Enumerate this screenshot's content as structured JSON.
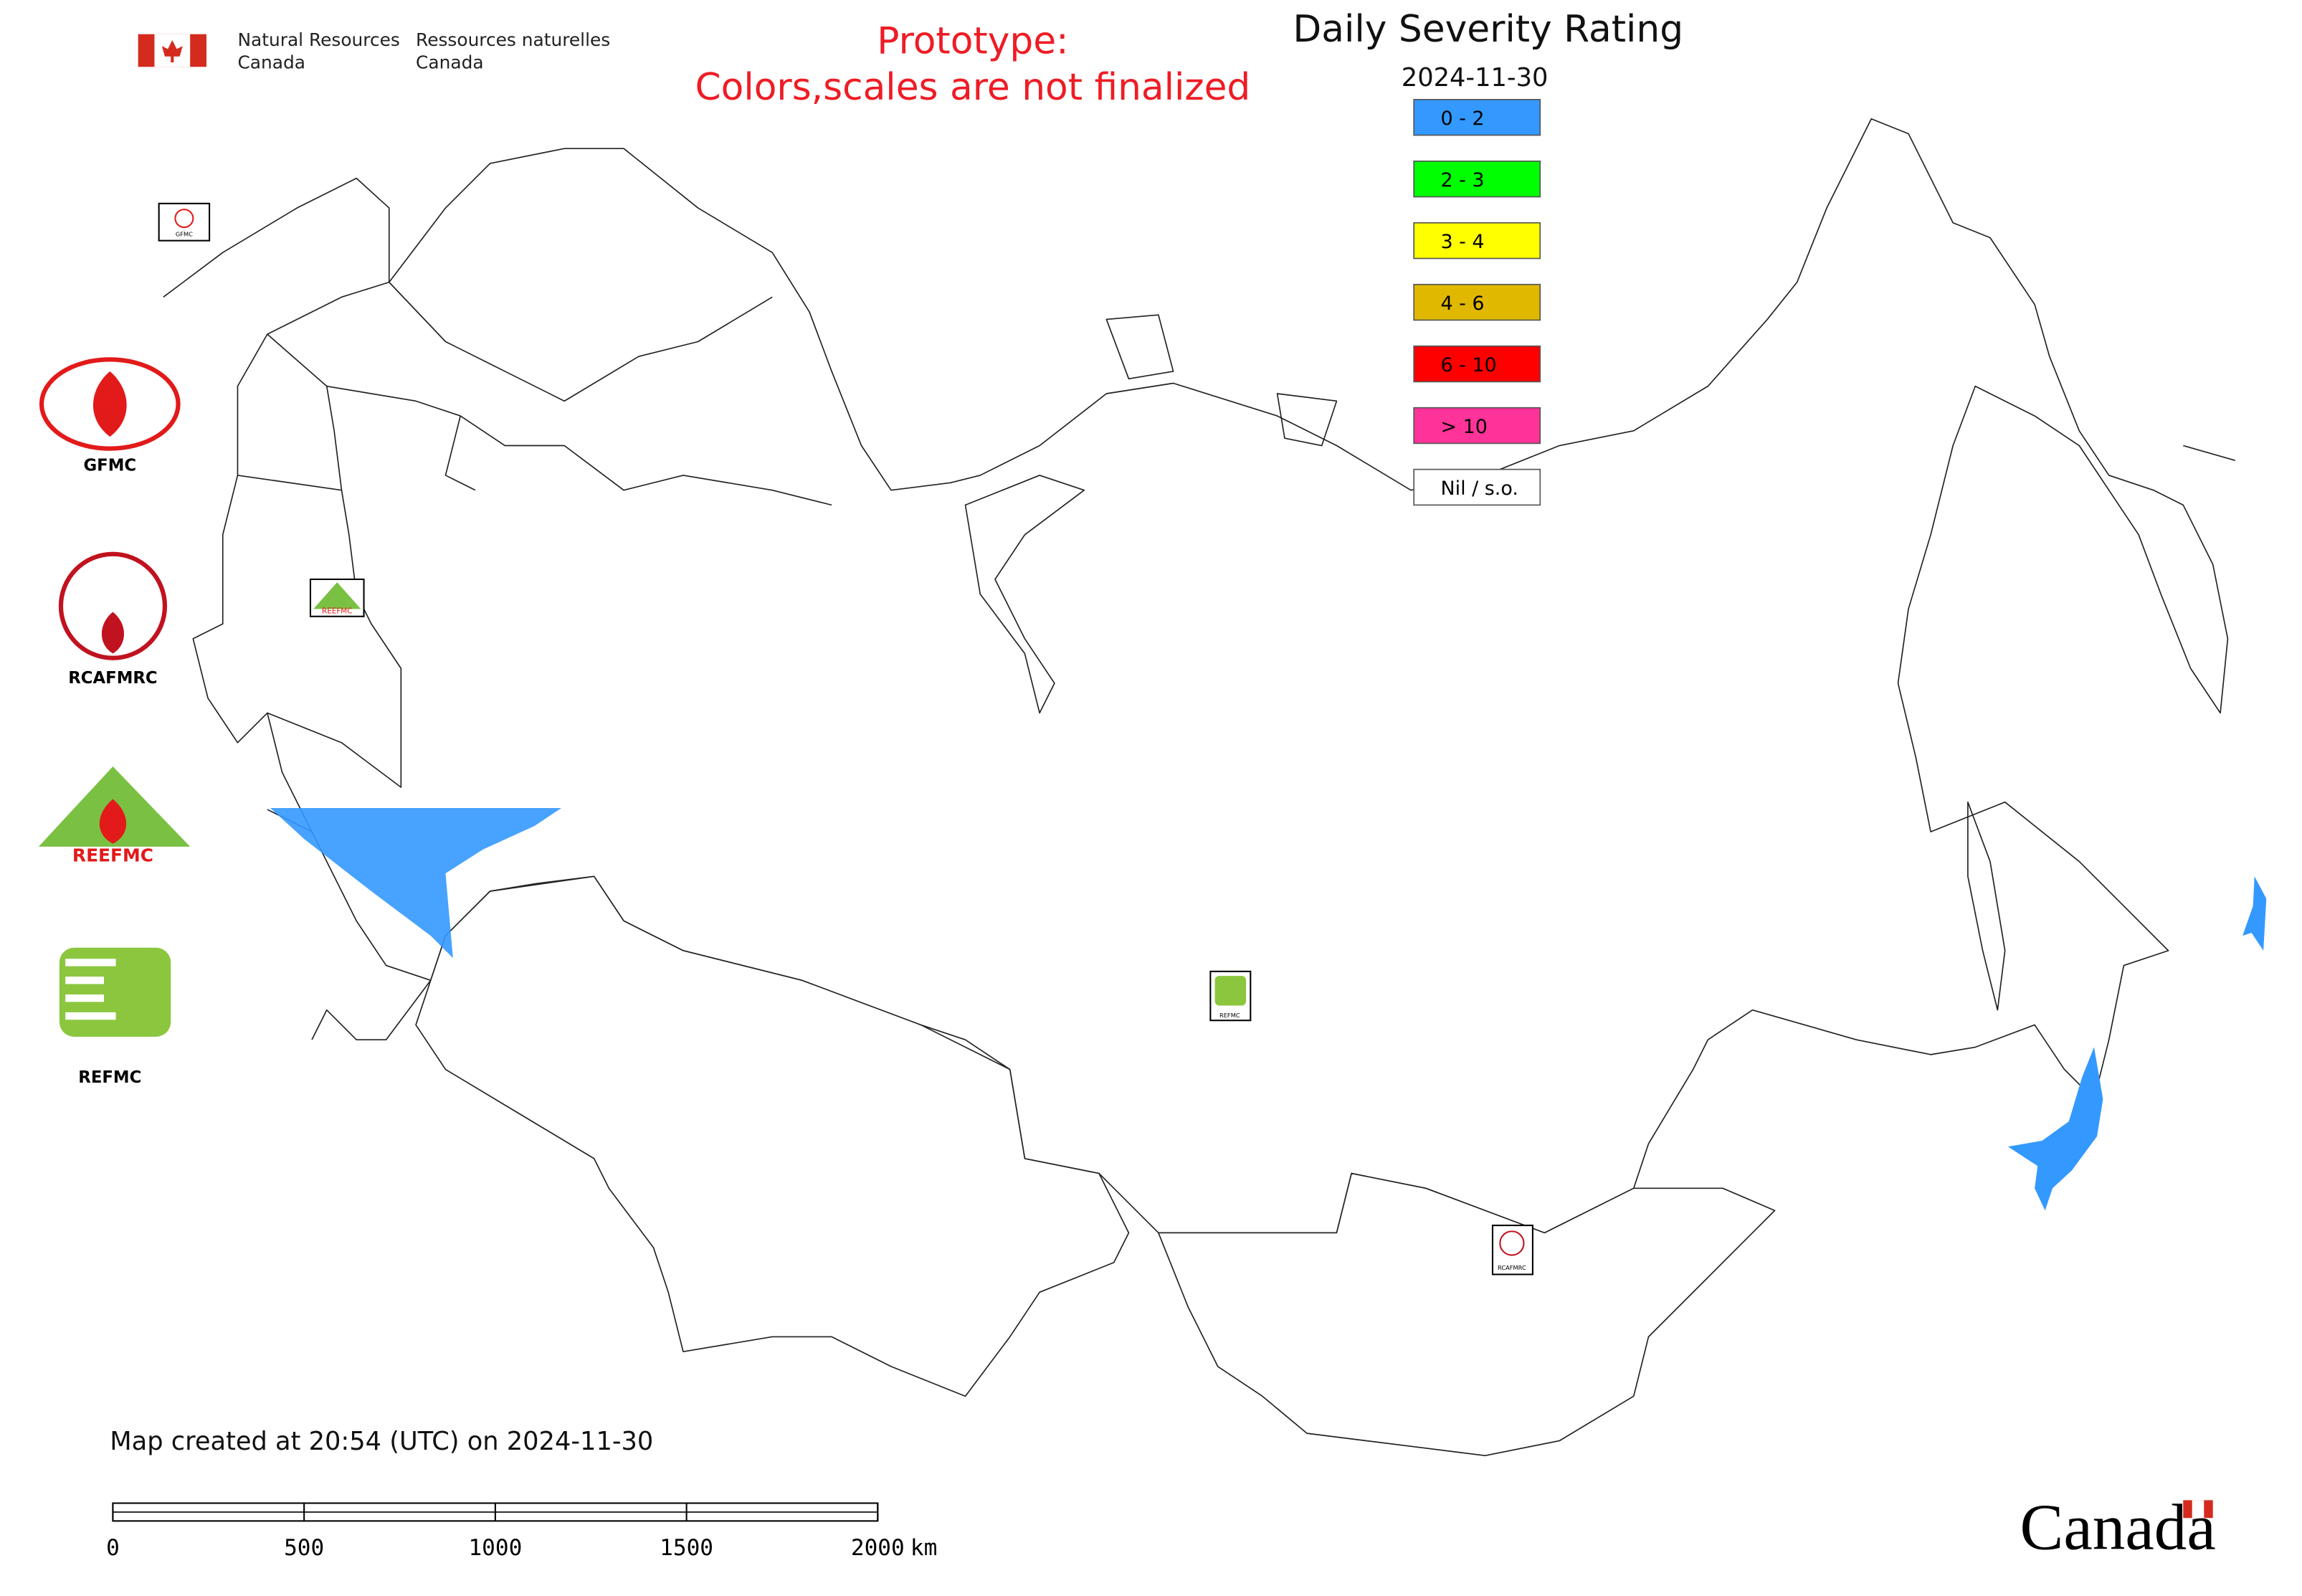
{
  "header": {
    "dept_en": [
      "Natural Resources",
      "Canada"
    ],
    "dept_fr": [
      "Ressources naturelles",
      "Canada"
    ]
  },
  "notice": [
    "Prototype:",
    "Colors,scales are not finalized"
  ],
  "title": "Daily Severity Rating",
  "date": "2024-11-30",
  "legend": [
    {
      "label": "0 - 2",
      "color": "#3399ff"
    },
    {
      "label": "2 - 3",
      "color": "#00ff00"
    },
    {
      "label": "3 - 4",
      "color": "#ffff00"
    },
    {
      "label": "4 - 6",
      "color": "#e0b800"
    },
    {
      "label": "6 - 10",
      "color": "#ff0000"
    },
    {
      "label": "> 10",
      "color": "#ff3399"
    },
    {
      "label": "Nil / s.o.",
      "color": "#ffffff"
    }
  ],
  "logos": [
    "GFMC",
    "RCAFMRC",
    "REFMC"
  ],
  "logo_wordmark": "REEFMC",
  "map_markers": [
    "GFMC",
    "REEFMC",
    "REFMC",
    "RCAFMRC"
  ],
  "footer": "Map created at 20:54 (UTC) on 2024-11-30",
  "scale_bar": {
    "ticks": [
      0,
      500,
      1000,
      1500,
      2000
    ],
    "unit": "km"
  },
  "wordmark": "Canada"
}
